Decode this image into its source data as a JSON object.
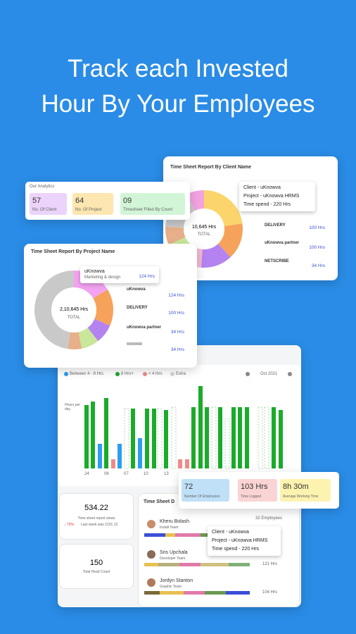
{
  "headline": [
    "Track each Invested",
    "Hour By Your Employees"
  ],
  "client_card": {
    "title": "Time Sheet Report By Client Name",
    "center_value": "10,645 Hrs",
    "center_label": "TOTAL",
    "tooltip": [
      "Client - uKnowva",
      "Project - uKnowva HRMS",
      "Time spend - 220 Hrs"
    ],
    "list": [
      {
        "name": "DELIVERY",
        "value": "100 Hrs"
      },
      {
        "name": "uKnowva partner",
        "value": "100 Hrs"
      },
      {
        "name": "NETSCRIBE",
        "value": "34 Hrs"
      }
    ]
  },
  "analytics_card": {
    "title": "Our Analytics",
    "stats": [
      {
        "value": "57",
        "label": "No. Of Client"
      },
      {
        "value": "64",
        "label": "No. Of Project"
      },
      {
        "value": "09",
        "label": "Timesheet Filled By Count"
      }
    ]
  },
  "project_card": {
    "title": "Time Sheet Report By Project Name",
    "center_value": "2,10,645 Hrs",
    "center_label": "TOTAL",
    "tooltip": {
      "name": "uKnowva",
      "sub": "Marketing & design",
      "value": "124 Hrs"
    },
    "list": [
      {
        "name": "uKnowva",
        "value": "124 Hrs"
      },
      {
        "name": "DELIVERY",
        "value": "100 Hrs"
      },
      {
        "name": "uKnowva partner",
        "value": "34 Hrs"
      },
      {
        "name": "",
        "value": "34 Hrs"
      }
    ]
  },
  "hours_card": {
    "legend": [
      "Between 4 - 8 Hrs",
      "8 Hrs+",
      "< 4 Hrs",
      "Extra"
    ],
    "month": "Oct 2021",
    "axis_label": "Hours per day",
    "x_labels": [
      "24",
      "06",
      "07",
      "10",
      "13"
    ]
  },
  "summary_card": [
    {
      "value": "72",
      "label": "Number Of Employees"
    },
    {
      "value": "103 Hrs",
      "label": "Time Logged"
    },
    {
      "value": "8h 30m",
      "label": "Average Working Time"
    }
  ],
  "views_card": {
    "value": "534.22",
    "label": "Time sheet report views",
    "change": "↓ 73%",
    "previous": "Last week was 2101.12"
  },
  "headcount_card": {
    "value": "150",
    "label": "Total Head Count"
  },
  "timesheet_card": {
    "title": "Time Sheet D",
    "count": "32 Employees",
    "employees": [
      {
        "name": "Kheru Bolash",
        "team": "Install Team",
        "hours": ""
      },
      {
        "name": "Sris Upchala",
        "team": "Developer Team",
        "hours": "121 Hrs"
      },
      {
        "name": "Jordyn Stanton",
        "team": "Graphic Team",
        "hours": "104 Hrs"
      }
    ],
    "tooltip": [
      "Client - uKnowva",
      "Project - uKnowva HRMS",
      "Time spend - 220 Hrs"
    ]
  }
}
